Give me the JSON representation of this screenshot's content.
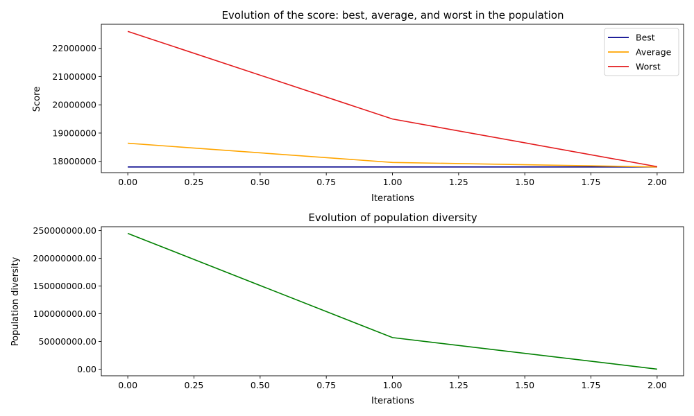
{
  "chart_data": [
    {
      "type": "line",
      "title": "Evolution of the score: best, average, and worst in the population",
      "xlabel": "Iterations",
      "ylabel": "Score",
      "x": [
        0,
        1,
        2
      ],
      "xlim": [
        -0.1,
        2.1
      ],
      "ylim": [
        17600000,
        22850000
      ],
      "xticks": [
        "0.00",
        "0.25",
        "0.50",
        "0.75",
        "1.00",
        "1.25",
        "1.50",
        "1.75",
        "2.00"
      ],
      "yticks": [
        "18000000",
        "19000000",
        "20000000",
        "21000000",
        "22000000"
      ],
      "legend_position": "top-right",
      "grid": false,
      "series": [
        {
          "name": "Best",
          "color": "#00008b",
          "values": [
            17800000,
            17800000,
            17800000
          ]
        },
        {
          "name": "Average",
          "color": "#ffa500",
          "values": [
            18640000,
            17960000,
            17800000
          ]
        },
        {
          "name": "Worst",
          "color": "#e31a1c",
          "values": [
            22600000,
            19500000,
            17810000
          ]
        }
      ]
    },
    {
      "type": "line",
      "title": "Evolution of population diversity",
      "xlabel": "Iterations",
      "ylabel": "Population diversity",
      "x": [
        0,
        1,
        2
      ],
      "xlim": [
        -0.1,
        2.1
      ],
      "ylim": [
        -12000000,
        257000000
      ],
      "xticks": [
        "0.00",
        "0.25",
        "0.50",
        "0.75",
        "1.00",
        "1.25",
        "1.50",
        "1.75",
        "2.00"
      ],
      "yticks": [
        "0.00",
        "50000000.00",
        "100000000.00",
        "150000000.00",
        "200000000.00",
        "250000000.00"
      ],
      "grid": false,
      "series": [
        {
          "color": "#008000",
          "values": [
            245000000,
            57000000,
            0
          ]
        }
      ]
    }
  ]
}
